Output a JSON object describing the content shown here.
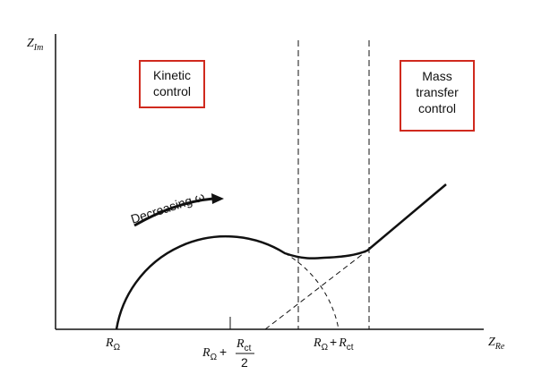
{
  "axes": {
    "y_label": {
      "symbol": "Z",
      "sub": "Im"
    },
    "x_label": {
      "symbol": "Z",
      "sub": "Re"
    }
  },
  "regions": [
    {
      "lines": [
        "Kinetic",
        "control"
      ]
    },
    {
      "lines": [
        "Mass",
        "transfer",
        "control"
      ]
    }
  ],
  "arrow_label": "Decreasing ω",
  "markers": [
    {
      "symbol": "R",
      "sub": "Ω"
    },
    {
      "symbol": "R",
      "sub": "Ω",
      "plus": "+",
      "numerator": {
        "symbol": "R",
        "sub": "ct"
      },
      "denominator": "2"
    },
    {
      "symbol": "R",
      "sub": "Ω",
      "plus": "+",
      "term": {
        "symbol": "R",
        "sub": "ct"
      }
    }
  ]
}
